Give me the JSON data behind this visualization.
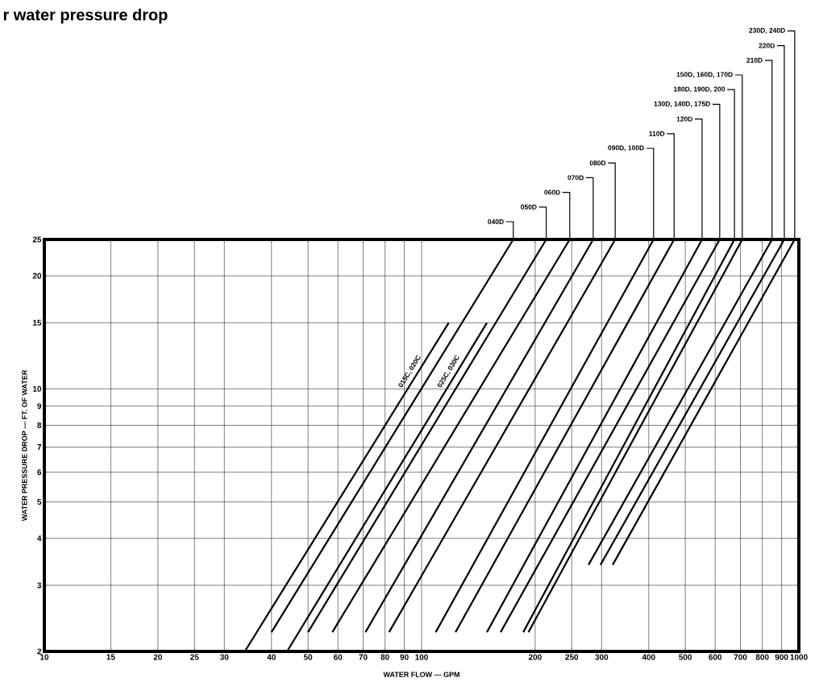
{
  "chart_data": {
    "type": "line",
    "title": "r water pressure drop",
    "xlabel": "WATER FLOW — GPM",
    "ylabel": "WATER PRESSURE DROP — FT. OF WATER",
    "log": "xy",
    "grid": true,
    "marker": "none",
    "line_style": "solid",
    "xlim": [
      10,
      1000
    ],
    "ylim": [
      2,
      25
    ],
    "xticks": [
      10,
      15,
      20,
      25,
      30,
      40,
      50,
      60,
      70,
      80,
      90,
      100,
      200,
      250,
      300,
      400,
      500,
      600,
      700,
      800,
      900,
      1000
    ],
    "yticks": [
      2,
      3,
      4,
      5,
      6,
      7,
      8,
      9,
      10,
      15,
      20,
      25
    ],
    "series": [
      {
        "name": "015C, 020C",
        "color": "#000000",
        "x": [
          34,
          118
        ],
        "values": [
          2,
          15
        ]
      },
      {
        "name": "040D",
        "color": "#000000",
        "x": [
          40,
          175
        ],
        "values": [
          2.25,
          25
        ]
      },
      {
        "name": "025C, 030C",
        "color": "#000000",
        "x": [
          44,
          149
        ],
        "values": [
          2,
          15
        ]
      },
      {
        "name": "050D",
        "color": "#000000",
        "x": [
          50,
          214
        ],
        "values": [
          2.25,
          25
        ]
      },
      {
        "name": "060D",
        "color": "#000000",
        "x": [
          58,
          247
        ],
        "values": [
          2.25,
          25
        ]
      },
      {
        "name": "070D",
        "color": "#000000",
        "x": [
          71,
          285
        ],
        "values": [
          2.25,
          25
        ]
      },
      {
        "name": "080D",
        "color": "#000000",
        "x": [
          82,
          326
        ],
        "values": [
          2.25,
          25
        ]
      },
      {
        "name": "090D, 100D",
        "color": "#000000",
        "x": [
          109,
          412
        ],
        "values": [
          2.25,
          25
        ]
      },
      {
        "name": "110D",
        "color": "#000000",
        "x": [
          123,
          467
        ],
        "values": [
          2.25,
          25
        ]
      },
      {
        "name": "120D",
        "color": "#000000",
        "x": [
          149,
          554
        ],
        "values": [
          2.25,
          25
        ]
      },
      {
        "name": "130D, 140D, 175D",
        "color": "#000000",
        "x": [
          162,
          617
        ],
        "values": [
          2.25,
          25
        ]
      },
      {
        "name": "180D, 190D, 200",
        "color": "#000000",
        "x": [
          186,
          675
        ],
        "values": [
          2.25,
          25
        ]
      },
      {
        "name": "150D, 160D, 170D",
        "color": "#000000",
        "x": [
          192,
          708
        ],
        "values": [
          2.25,
          25
        ]
      },
      {
        "name": "210D",
        "color": "#000000",
        "x": [
          277,
          849
        ],
        "values": [
          3.4,
          25
        ]
      },
      {
        "name": "220D",
        "color": "#000000",
        "x": [
          298,
          915
        ],
        "values": [
          3.4,
          25
        ]
      },
      {
        "name": "230D, 240D",
        "color": "#000000",
        "x": [
          321,
          975
        ],
        "values": [
          3.4,
          25
        ]
      }
    ]
  }
}
